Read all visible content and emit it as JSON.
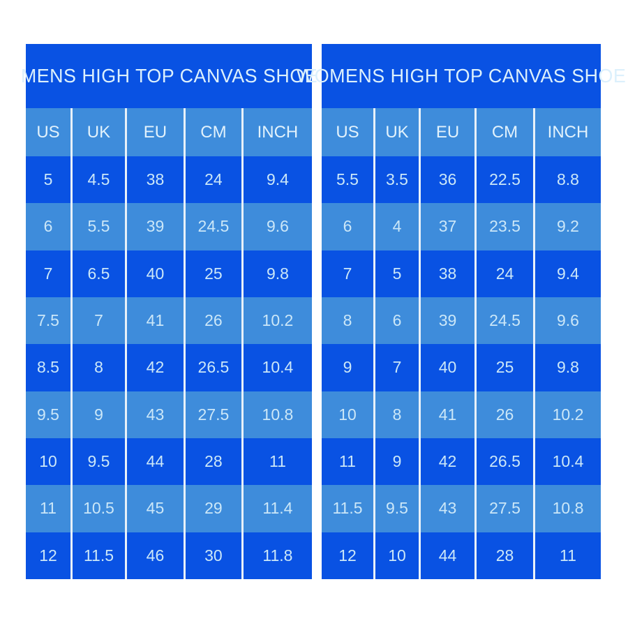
{
  "chart_data": [
    {
      "type": "table",
      "title": "MENS HIGH TOP CANVAS SHOE",
      "columns": [
        "US",
        "UK",
        "EU",
        "CM",
        "INCH"
      ],
      "rows": [
        [
          "5",
          "4.5",
          "38",
          "24",
          "9.4"
        ],
        [
          "6",
          "5.5",
          "39",
          "24.5",
          "9.6"
        ],
        [
          "7",
          "6.5",
          "40",
          "25",
          "9.8"
        ],
        [
          "7.5",
          "7",
          "41",
          "26",
          "10.2"
        ],
        [
          "8.5",
          "8",
          "42",
          "26.5",
          "10.4"
        ],
        [
          "9.5",
          "9",
          "43",
          "27.5",
          "10.8"
        ],
        [
          "10",
          "9.5",
          "44",
          "28",
          "11"
        ],
        [
          "11",
          "10.5",
          "45",
          "29",
          "11.4"
        ],
        [
          "12",
          "11.5",
          "46",
          "30",
          "11.8"
        ]
      ]
    },
    {
      "type": "table",
      "title": "WOMENS HIGH TOP CANVAS SHOE",
      "columns": [
        "US",
        "UK",
        "EU",
        "CM",
        "INCH"
      ],
      "rows": [
        [
          "5.5",
          "3.5",
          "36",
          "22.5",
          "8.8"
        ],
        [
          "6",
          "4",
          "37",
          "23.5",
          "9.2"
        ],
        [
          "7",
          "5",
          "38",
          "24",
          "9.4"
        ],
        [
          "8",
          "6",
          "39",
          "24.5",
          "9.6"
        ],
        [
          "9",
          "7",
          "40",
          "25",
          "9.8"
        ],
        [
          "10",
          "8",
          "41",
          "26",
          "10.2"
        ],
        [
          "11",
          "9",
          "42",
          "26.5",
          "10.4"
        ],
        [
          "11.5",
          "9.5",
          "43",
          "27.5",
          "10.8"
        ],
        [
          "12",
          "10",
          "44",
          "28",
          "11"
        ]
      ]
    }
  ],
  "colors": {
    "row_dark": "#0952E3",
    "row_light": "#3E8CDB",
    "divider": "#E8F1F9",
    "background": "#FFFFFF",
    "cell_text": "#CBE7F8",
    "title_text": "#DCF0FC"
  }
}
